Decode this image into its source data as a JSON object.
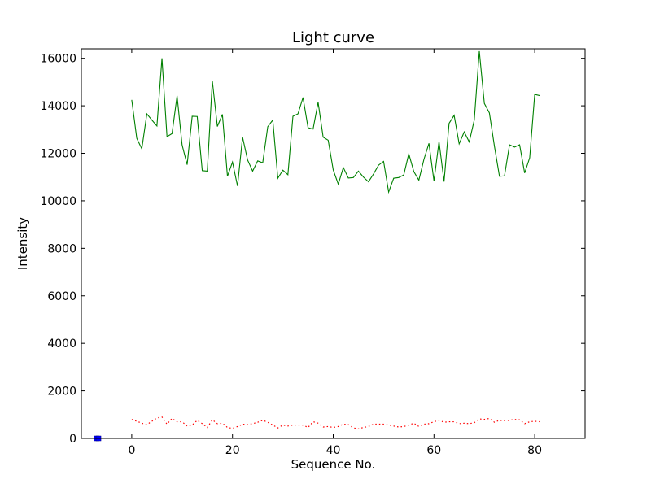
{
  "chart_data": {
    "type": "line",
    "title": "Light curve",
    "xlabel": "Sequence No.",
    "ylabel": "Intensity",
    "xlim": [
      -10,
      90
    ],
    "ylim": [
      0,
      16400
    ],
    "xticks": [
      0,
      20,
      40,
      60,
      80
    ],
    "yticks": [
      0,
      2000,
      4000,
      6000,
      8000,
      10000,
      12000,
      14000,
      16000
    ],
    "grid": false,
    "legend": "none",
    "series": [
      {
        "color": "#008000",
        "style": "solid",
        "x": [
          0,
          1,
          2,
          3,
          4,
          5,
          6,
          7,
          8,
          9,
          10,
          11,
          12,
          13,
          14,
          15,
          16,
          17,
          18,
          19,
          20,
          21,
          22,
          23,
          24,
          25,
          26,
          27,
          28,
          29,
          30,
          31,
          32,
          33,
          34,
          35,
          36,
          37,
          38,
          39,
          40,
          41,
          42,
          43,
          44,
          45,
          46,
          47,
          48,
          49,
          50,
          51,
          52,
          53,
          54,
          55,
          56,
          57,
          58,
          59,
          60,
          61,
          62,
          63,
          64,
          65,
          66,
          67,
          68,
          69,
          70,
          71,
          72,
          73,
          74,
          75,
          76,
          77,
          78,
          79,
          80,
          81
        ],
        "values": [
          14250,
          12630,
          12190,
          13660,
          13400,
          13150,
          16000,
          12700,
          12830,
          14420,
          12350,
          11520,
          13560,
          13550,
          11270,
          11250,
          15050,
          13130,
          13640,
          11030,
          11630,
          10620,
          12680,
          11720,
          11250,
          11680,
          11600,
          13120,
          13400,
          10950,
          11290,
          11100,
          13560,
          13660,
          14350,
          13080,
          13020,
          14150,
          12680,
          12550,
          11300,
          10700,
          11400,
          10960,
          10980,
          11250,
          11000,
          10800,
          11130,
          11500,
          11660,
          10370,
          10950,
          10980,
          11090,
          11980,
          11230,
          10870,
          11740,
          12420,
          10830,
          12500,
          10810,
          13260,
          13600,
          12400,
          12900,
          12480,
          13400,
          16300,
          14100,
          13700,
          12300,
          11030,
          11050,
          12360,
          12260,
          12360,
          11170,
          11810,
          14480,
          14430
        ]
      },
      {
        "color": "#ff0000",
        "style": "dotted",
        "x": [
          0,
          1,
          2,
          3,
          4,
          5,
          6,
          7,
          8,
          9,
          10,
          11,
          12,
          13,
          14,
          15,
          16,
          17,
          18,
          19,
          20,
          21,
          22,
          23,
          24,
          25,
          26,
          27,
          28,
          29,
          30,
          31,
          32,
          33,
          34,
          35,
          36,
          37,
          38,
          39,
          40,
          41,
          42,
          43,
          44,
          45,
          46,
          47,
          48,
          49,
          50,
          51,
          52,
          53,
          54,
          55,
          56,
          57,
          58,
          59,
          60,
          61,
          62,
          63,
          64,
          65,
          66,
          67,
          68,
          69,
          70,
          71,
          72,
          73,
          74,
          75,
          76,
          77,
          78,
          79,
          80,
          81
        ],
        "values": [
          800,
          720,
          640,
          580,
          720,
          860,
          900,
          600,
          840,
          700,
          700,
          520,
          560,
          760,
          620,
          460,
          780,
          620,
          640,
          460,
          420,
          500,
          600,
          580,
          620,
          680,
          760,
          680,
          560,
          440,
          560,
          520,
          560,
          560,
          560,
          460,
          700,
          640,
          480,
          500,
          460,
          500,
          600,
          580,
          440,
          400,
          460,
          500,
          600,
          600,
          600,
          560,
          520,
          480,
          500,
          560,
          640,
          500,
          600,
          620,
          700,
          760,
          680,
          700,
          700,
          620,
          640,
          620,
          660,
          820,
          800,
          840,
          680,
          760,
          740,
          760,
          800,
          780,
          620,
          700,
          720,
          700
        ]
      },
      {
        "color": "#0000ff",
        "style": "marker",
        "x": [
          -7,
          -6.6
        ],
        "values": [
          0,
          0
        ]
      }
    ]
  }
}
